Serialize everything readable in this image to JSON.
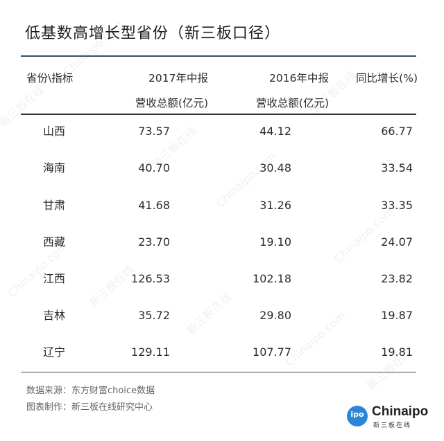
{
  "title": "低基数高增长型省份（新三板口径）",
  "table": {
    "headers": {
      "col1": "省份\\指标",
      "col2": [
        "2017年中报",
        "营收总额(亿元)"
      ],
      "col3": [
        "2016年中报",
        "营收总额(亿元)"
      ],
      "col4": "同比增长(%)"
    },
    "rows": [
      {
        "province": "山西",
        "y2017": "73.57",
        "y2016": "44.12",
        "growth": "66.77"
      },
      {
        "province": "海南",
        "y2017": "40.70",
        "y2016": "30.48",
        "growth": "33.54"
      },
      {
        "province": "甘肃",
        "y2017": "41.68",
        "y2016": "31.26",
        "growth": "33.35"
      },
      {
        "province": "西藏",
        "y2017": "23.70",
        "y2016": "19.10",
        "growth": "24.07"
      },
      {
        "province": "江西",
        "y2017": "126.53",
        "y2016": "102.18",
        "growth": "23.82"
      },
      {
        "province": "吉林",
        "y2017": "35.72",
        "y2016": "29.80",
        "growth": "19.87"
      },
      {
        "province": "辽宁",
        "y2017": "129.11",
        "y2016": "107.77",
        "growth": "19.81"
      }
    ]
  },
  "footer": {
    "source": "数据来源：东方财富choice数据",
    "maker": "图表制作：新三板在线研究中心"
  },
  "logo": {
    "badge": "ipo",
    "name": "Chinaipo",
    "sub": "新三板在线"
  },
  "watermark": {
    "text_cn": "新三板在线",
    "text_en": "Chinaipo.com"
  },
  "colors": {
    "accent_rule": "#2f4f6f",
    "logo_blue": "#2a86d9"
  }
}
